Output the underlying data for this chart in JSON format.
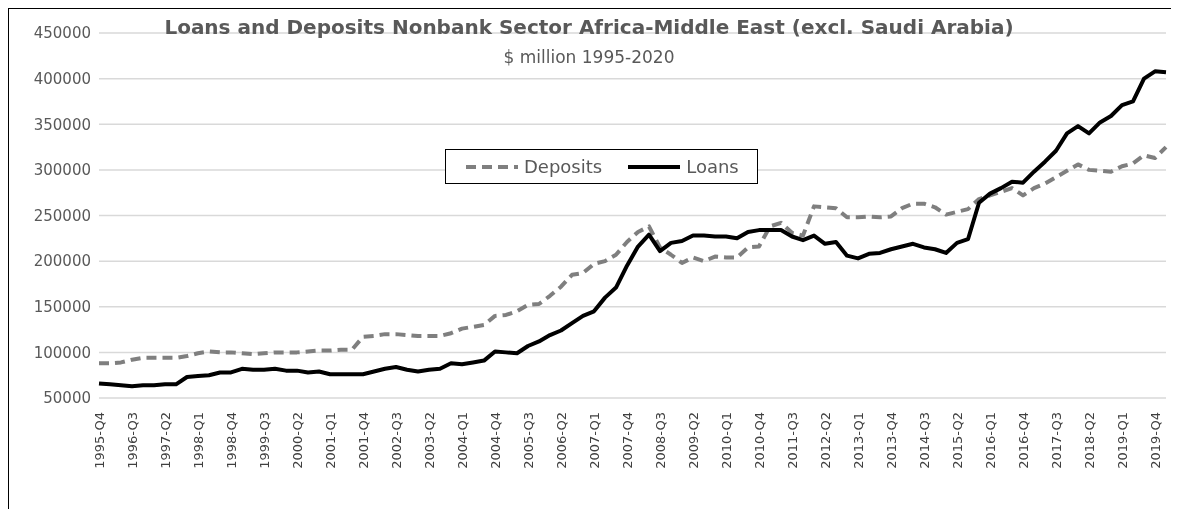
{
  "chart_data": {
    "type": "line",
    "title": "Loans and Deposits Nonbank Sector Africa-Middle East (excl. Saudi Arabia)",
    "subtitle": "$ million 1995-2020",
    "categories": [
      "1995-Q4",
      null,
      null,
      "1996-Q3",
      null,
      null,
      "1997-Q2",
      null,
      null,
      "1998-Q1",
      null,
      null,
      "1998-Q4",
      null,
      null,
      "1999-Q3",
      null,
      null,
      "2000-Q2",
      null,
      null,
      "2001-Q1",
      null,
      null,
      "2001-Q4",
      null,
      null,
      "2002-Q3",
      null,
      null,
      "2003-Q2",
      null,
      null,
      "2004-Q1",
      null,
      null,
      "2004-Q4",
      null,
      null,
      "2005-Q3",
      null,
      null,
      "2006-Q2",
      null,
      null,
      "2007-Q1",
      null,
      null,
      "2007-Q4",
      null,
      null,
      "2008-Q3",
      null,
      null,
      "2009-Q2",
      null,
      null,
      "2010-Q1",
      null,
      null,
      "2010-Q4",
      null,
      null,
      "2011-Q3",
      null,
      null,
      "2012-Q2",
      null,
      null,
      "2013-Q1",
      null,
      null,
      "2013-Q4",
      null,
      null,
      "2014-Q3",
      null,
      null,
      "2015-Q2",
      null,
      null,
      "2016-Q1",
      null,
      null,
      "2016-Q4",
      null,
      null,
      "2017-Q3",
      null,
      null,
      "2018-Q2",
      null,
      null,
      "2019-Q1",
      null,
      null,
      "2019-Q4",
      null
    ],
    "series": [
      {
        "name": "Deposits",
        "color": "#7f7f7f",
        "line_style": "dashed",
        "values": [
          88000,
          88000,
          89000,
          92000,
          94000,
          94000,
          94000,
          94000,
          96000,
          99000,
          101000,
          100000,
          100000,
          99000,
          98000,
          99000,
          100000,
          100000,
          100000,
          101000,
          102000,
          102000,
          103000,
          103000,
          117000,
          118000,
          120000,
          120000,
          119000,
          118000,
          118000,
          118000,
          121000,
          126000,
          128000,
          130000,
          140000,
          141000,
          145000,
          152000,
          153000,
          162000,
          172000,
          185000,
          187000,
          197000,
          200000,
          207000,
          221000,
          232000,
          238000,
          215000,
          207000,
          198000,
          204000,
          200000,
          205000,
          204000,
          204000,
          215000,
          216000,
          238000,
          242000,
          231000,
          228000,
          260000,
          259000,
          258000,
          248000,
          248000,
          249000,
          248000,
          249000,
          258000,
          263000,
          263000,
          259000,
          251000,
          254000,
          257000,
          268000,
          272000,
          276000,
          280000,
          272000,
          280000,
          285000,
          292000,
          299000,
          306000,
          300000,
          299000,
          298000,
          304000,
          307000,
          316000,
          313000,
          325000
        ]
      },
      {
        "name": "Loans",
        "color": "#000000",
        "line_style": "solid",
        "values": [
          66000,
          65000,
          64000,
          63000,
          64000,
          64000,
          65000,
          65000,
          73000,
          74000,
          75000,
          78000,
          78000,
          82000,
          81000,
          81000,
          82000,
          80000,
          80000,
          78000,
          79000,
          76000,
          76000,
          76000,
          76000,
          79000,
          82000,
          84000,
          81000,
          79000,
          81000,
          82000,
          88000,
          87000,
          89000,
          91000,
          101000,
          100000,
          99000,
          107000,
          112000,
          119000,
          124000,
          132000,
          140000,
          145000,
          160000,
          171000,
          195000,
          216000,
          229000,
          211000,
          220000,
          222000,
          228000,
          228000,
          227000,
          227000,
          225000,
          232000,
          234000,
          234000,
          234000,
          227000,
          223000,
          228000,
          219000,
          221000,
          206000,
          203000,
          208000,
          209000,
          213000,
          216000,
          219000,
          215000,
          213000,
          209000,
          220000,
          224000,
          264000,
          274000,
          280000,
          287000,
          286000,
          298000,
          309000,
          321000,
          340000,
          348000,
          340000,
          352000,
          359000,
          371000,
          375000,
          400000,
          408000,
          407000
        ]
      }
    ],
    "ylim": [
      50000,
      450000
    ],
    "yticks": [
      50000,
      100000,
      150000,
      200000,
      250000,
      300000,
      350000,
      400000,
      450000
    ],
    "grid": "y",
    "legend": "top"
  }
}
